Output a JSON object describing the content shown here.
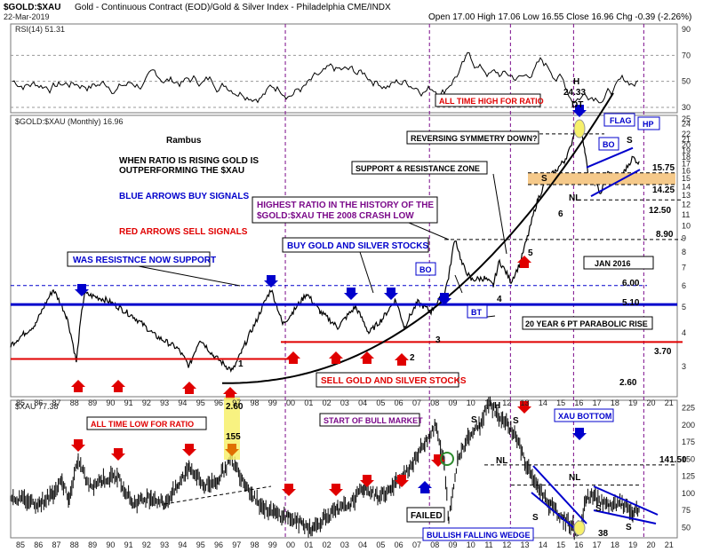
{
  "header": {
    "symbol": "$GOLD:$XAU",
    "title": "Gold - Continuous Contract (EOD)/Gold & Silver Index - Philadelphia CME/INDX",
    "date": "22-Mar-2019",
    "quote": "Open 17.00  High 17.06  Low 16.55  Close 16.96  Chg -0.39 (-2.26%)"
  },
  "chart_data": [
    {
      "type": "line",
      "name": "RSI panel",
      "legend": "RSI(14) 51.31",
      "ylim": [
        30,
        90
      ],
      "y_ticks": [
        "90",
        "70",
        "50",
        "30"
      ],
      "levels": [
        70,
        50,
        30
      ]
    },
    {
      "type": "line",
      "name": "GOLD:XAU ratio panel",
      "legend": "$GOLD:$XAU (Monthly) 16.96",
      "scale": "log",
      "ylim": [
        2.5,
        25
      ],
      "y_ticks": [
        "25",
        "24",
        "22",
        "21",
        "20",
        "19",
        "18",
        "17",
        "16",
        "15",
        "14",
        "13",
        "12",
        "11",
        "10",
        "9",
        "8",
        "7",
        "6",
        "5",
        "4",
        "3"
      ],
      "levels": [
        {
          "label": "15.75",
          "value": 15.75
        },
        {
          "label": "14.25",
          "value": 14.25
        },
        {
          "label": "12.50",
          "value": 12.5
        },
        {
          "label": "8.90",
          "value": 8.9
        },
        {
          "label": "6.00",
          "value": 6.0
        },
        {
          "label": "5.10",
          "value": 5.1
        },
        {
          "label": "3.70",
          "value": 3.7
        },
        {
          "label": "2.60",
          "value": 2.6
        },
        {
          "label": "24.33",
          "value": 24.33
        }
      ]
    },
    {
      "type": "line",
      "name": "XAU panel",
      "legend": "$XAU 77.38",
      "ylim": [
        40,
        235
      ],
      "y_ticks": [
        "225",
        "200",
        "175",
        "150",
        "125",
        "100",
        "75",
        "50"
      ],
      "levels": [
        {
          "label": "141.50",
          "value": 141.5
        }
      ]
    }
  ],
  "x_axis": [
    "85",
    "86",
    "87",
    "88",
    "89",
    "90",
    "91",
    "92",
    "93",
    "94",
    "95",
    "96",
    "97",
    "98",
    "99",
    "00",
    "01",
    "02",
    "03",
    "04",
    "05",
    "06",
    "07",
    "08",
    "09",
    "10",
    "11",
    "12",
    "13",
    "14",
    "15",
    "16",
    "17",
    "18",
    "19",
    "20",
    "21"
  ],
  "annotations": {
    "rambus": "Rambus",
    "when_ratio": "WHEN RATIO IS RISING GOLD IS",
    "outperforming": "OUTPERFORMING THE $XAU",
    "blue_arrows": "BLUE ARROWS BUY SIGNALS",
    "red_arrows": "RED ARROWS SELL SIGNALS",
    "was_resistance": "WAS RESISTNCE NOW SUPPORT",
    "highest_ratio_1": "HIGHEST RATIO IN THE HISTORY OF THE",
    "highest_ratio_2": "$GOLD:$XAU THE 2008 CRASH LOW",
    "buy_gold": "BUY GOLD AND SILVER STOCKS",
    "sell_gold": "SELL GOLD AND SILVER STOCKS",
    "all_time_high": "ALL TIME HIGH FOR RATIO",
    "reversing": "REVERSING SYMMETRY DOWN?",
    "support_resistance": "SUPPORT & RESISTANCE ZONE",
    "jan_2016": "JAN 2016",
    "parabolic": "20 YEAR 6 PT  PARABOLIC RISE",
    "flag": "FLAG",
    "hp": "HP",
    "h": "H",
    "dt": "DT",
    "bo1": "BO",
    "bo2": "BO",
    "bt": "BT",
    "s1": "S",
    "s2": "S",
    "nl": "NL",
    "n1": "1",
    "n2": "2",
    "n3": "3",
    "n4": "4",
    "n5": "5",
    "n6": "6",
    "all_time_low": "ALL TIME LOW FOR RATIO",
    "low_260": "2.60",
    "val_155": "155",
    "start_bull": "START OF BULL MARKET",
    "xau_bottom": "XAU BOTTOM",
    "failed": "FAILED",
    "bullish_wedge": "BULLISH FALLING WEDGE",
    "val_38": "38",
    "xau_s1": "S",
    "xau_h": "H",
    "xau_s2": "S",
    "xau_nl1": "NL",
    "xau_nl2": "NL",
    "xau_s3": "S",
    "xau_s4": "S",
    "xau_s5": "S"
  },
  "colors": {
    "blue": "#0000cc",
    "red": "#e00000",
    "purple": "#7b0a8a",
    "zone": "#f5c98a",
    "highlight": "#f7f06b",
    "green": "#2e8b2e"
  }
}
